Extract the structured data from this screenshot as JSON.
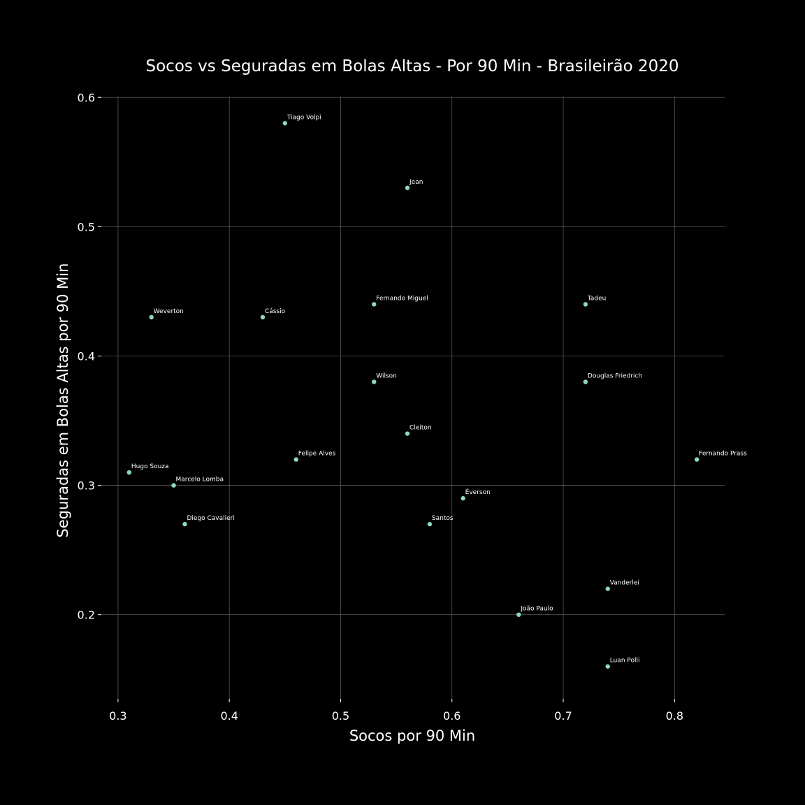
{
  "chart_data": {
    "type": "scatter",
    "title": "Socos vs Seguradas em Bolas Altas - Por 90 Min - Brasileirão 2020",
    "xlabel": "Socos por 90 Min",
    "ylabel": "Seguradas em Bolas Altas por 90 Min",
    "xlim": [
      0.285,
      0.845
    ],
    "ylim": [
      0.135,
      0.605
    ],
    "xticks": [
      0.3,
      0.4,
      0.5,
      0.6,
      0.7,
      0.8
    ],
    "xtick_labels": [
      "0.3",
      "0.4",
      "0.5",
      "0.6",
      "0.7",
      "0.8"
    ],
    "yticks": [
      0.2,
      0.3,
      0.4,
      0.5,
      0.6
    ],
    "ytick_labels": [
      "0.2",
      "0.3",
      "0.4",
      "0.5",
      "0.6"
    ],
    "grid": true,
    "marker_color": "#8fd6c8",
    "background": "#000000",
    "points": [
      {
        "label": "Tiago Volpi",
        "x": 0.45,
        "y": 0.58
      },
      {
        "label": "Jean",
        "x": 0.56,
        "y": 0.53
      },
      {
        "label": "Fernando Miguel",
        "x": 0.53,
        "y": 0.44
      },
      {
        "label": "Tadeu",
        "x": 0.72,
        "y": 0.44
      },
      {
        "label": "Weverton",
        "x": 0.33,
        "y": 0.43
      },
      {
        "label": "Cássio",
        "x": 0.43,
        "y": 0.43
      },
      {
        "label": "Wilson",
        "x": 0.53,
        "y": 0.38
      },
      {
        "label": "Douglas Friedrich",
        "x": 0.72,
        "y": 0.38
      },
      {
        "label": "Cleiton",
        "x": 0.56,
        "y": 0.34
      },
      {
        "label": "Felipe Alves",
        "x": 0.46,
        "y": 0.32
      },
      {
        "label": "Fernando Prass",
        "x": 0.82,
        "y": 0.32
      },
      {
        "label": "Hugo Souza",
        "x": 0.31,
        "y": 0.31
      },
      {
        "label": "Marcelo Lomba",
        "x": 0.35,
        "y": 0.3
      },
      {
        "label": "Éverson",
        "x": 0.61,
        "y": 0.29
      },
      {
        "label": "Diego Cavalieri",
        "x": 0.36,
        "y": 0.27
      },
      {
        "label": "Santos",
        "x": 0.58,
        "y": 0.27
      },
      {
        "label": "Vanderlei",
        "x": 0.74,
        "y": 0.22
      },
      {
        "label": "João Paulo",
        "x": 0.66,
        "y": 0.2
      },
      {
        "label": "Luan Polli",
        "x": 0.74,
        "y": 0.16
      }
    ]
  }
}
